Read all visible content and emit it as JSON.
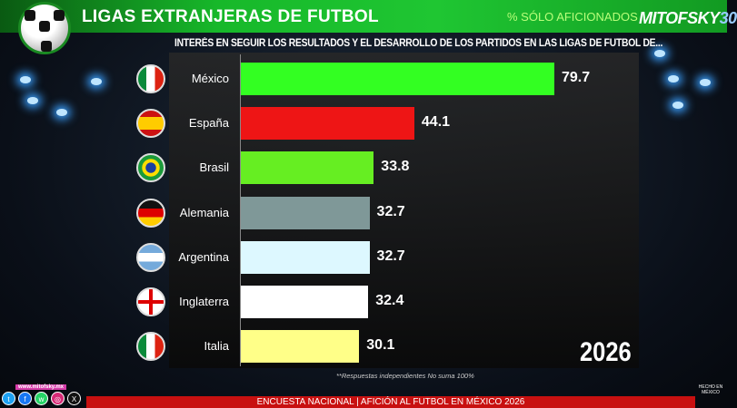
{
  "header": {
    "title": "LIGAS EXTRANJERAS  DE FUTBOL",
    "subtitle": "% SÓLO AFICIONADOS",
    "logo": "MITOFSKY",
    "logo_suffix": "30"
  },
  "chart_data": {
    "type": "bar",
    "orientation": "horizontal",
    "title": "INTERÉS EN SEGUIR LOS RESULTADOS Y EL DESARROLLO DE LOS PARTIDOS EN LAS LIGAS DE FUTBOL DE...",
    "categories": [
      "México",
      "España",
      "Brasil",
      "Alemania",
      "Argentina",
      "Inglaterra",
      "Italia"
    ],
    "values": [
      79.7,
      44.1,
      33.8,
      32.7,
      32.7,
      32.4,
      30.1
    ],
    "value_labels": [
      "79.7",
      "44.1",
      "33.8",
      "32.7",
      "32.7",
      "32.4",
      "30.1"
    ],
    "colors": [
      "#33ff22",
      "#ee1515",
      "#66ee22",
      "#7f9898",
      "#ddf8ff",
      "#ffffff",
      "#ffff88"
    ],
    "xlim": [
      0,
      80
    ],
    "year": "2026",
    "note": "**Respuestas independientes No suma 100%"
  },
  "footer": {
    "text": "ENCUESTA NACIONAL | AFICIÓN AL FUTBOL EN MÉXICO 2026",
    "website": "www.mitofsky.mx",
    "hecho": "HECHO EN MÉXICO"
  },
  "social": [
    "twitter-icon",
    "facebook-icon",
    "whatsapp-icon",
    "instagram-icon",
    "x-icon"
  ]
}
